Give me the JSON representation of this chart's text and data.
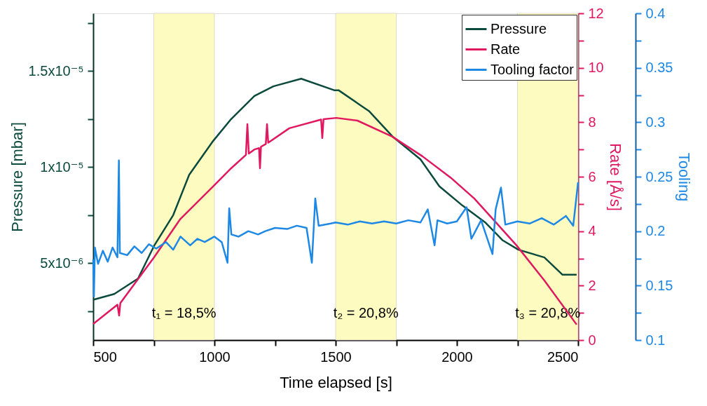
{
  "chart_data": {
    "type": "line",
    "xlabel": "Time elapsed [s]",
    "ylabel": "Pressure [mbar]",
    "y2label": "Rate [Å/s]",
    "y3label": "Tooling",
    "xlim": [
      500,
      2500
    ],
    "xticks": [
      500,
      {
        "value": 750,
        "label": null
      },
      1000,
      {
        "value": 1250,
        "label": null
      },
      1500,
      {
        "value": 1750,
        "label": null
      },
      2000,
      {
        "value": 2250,
        "label": null
      },
      2500
    ],
    "ylim": [
      1e-06,
      1.8e-05
    ],
    "yticks": [
      {
        "value": 2.5e-06,
        "label": null
      },
      {
        "value": 5e-06,
        "label": "5x10⁻⁶"
      },
      {
        "value": 7.5e-06,
        "label": null
      },
      {
        "value": 1e-05,
        "label": "1x10⁻⁵"
      },
      {
        "value": 1.25e-05,
        "label": null
      },
      {
        "value": 1.5e-05,
        "label": "1.5x10⁻⁵"
      },
      {
        "value": 1.75e-05,
        "label": null
      }
    ],
    "y2lim": [
      0,
      12
    ],
    "y2ticks": [
      0,
      {
        "value": 1,
        "label": null
      },
      2,
      {
        "value": 3,
        "label": null
      },
      4,
      {
        "value": 5,
        "label": null
      },
      6,
      {
        "value": 7,
        "label": null
      },
      8,
      {
        "value": 9,
        "label": null
      },
      10,
      {
        "value": 11,
        "label": null
      },
      12
    ],
    "y3lim": [
      0.1,
      0.4
    ],
    "y3ticks": [
      0.1,
      {
        "value": 0.125,
        "label": null
      },
      0.15,
      {
        "value": 0.175,
        "label": null
      },
      0.2,
      {
        "value": 0.225,
        "label": null
      },
      0.25,
      {
        "value": 0.275,
        "label": null
      },
      0.3,
      {
        "value": 0.325,
        "label": null
      },
      0.35,
      {
        "value": 0.375,
        "label": null
      },
      0.4
    ],
    "grid": false,
    "legend": "top right",
    "marker": "none",
    "line_style": "solid",
    "bands": [
      {
        "axis": "x",
        "from": 750,
        "to": 1000,
        "label": "t₁ = 18,5%",
        "color": "#fdfbbf"
      },
      {
        "axis": "x",
        "from": 1500,
        "to": 1750,
        "label": "t₂ = 20,8%",
        "color": "#fdfbbf"
      },
      {
        "axis": "x",
        "from": 2250,
        "to": 2500,
        "label": "t₃ = 20,8%",
        "color": "#fdfbbf"
      }
    ],
    "series": [
      {
        "name": "Pressure",
        "color": "#0b4a3c",
        "x": [
          500,
          587,
          685,
          751,
          830,
          896,
          991,
          1069,
          1165,
          1243,
          1358,
          1494,
          1512,
          1639,
          1734,
          1850,
          1928,
          2023,
          2119,
          2188,
          2254,
          2361,
          2436,
          2494
        ],
        "values": [
          3.1e-06,
          3.4e-06,
          4.2e-06,
          5.9e-06,
          7.5e-06,
          9.6e-06,
          1.13e-05,
          1.25e-05,
          1.37e-05,
          1.42e-05,
          1.46e-05,
          1.4e-05,
          1.4e-05,
          1.29e-05,
          1.16e-05,
          1.04e-05,
          9e-06,
          8e-06,
          7.1e-06,
          6.2e-06,
          5.7e-06,
          5.3e-06,
          4.4e-06,
          4.4e-06
        ]
      },
      {
        "name": "Rate",
        "color": "#e0185f",
        "axis": "y2",
        "x": [
          500,
          600,
          607,
          612,
          751,
          858,
          991,
          1069,
          1130,
          1136,
          1142,
          1165,
          1184,
          1188,
          1192,
          1212,
          1217,
          1222,
          1309,
          1440,
          1445,
          1450,
          1503,
          1590,
          1734,
          1858,
          1974,
          2072,
          2168,
          2246,
          2361,
          2494
        ],
        "values": [
          0.59,
          1.3,
          0.9,
          1.36,
          3.04,
          4.43,
          5.61,
          6.31,
          6.8,
          7.93,
          6.85,
          7.0,
          7.05,
          6.31,
          7.1,
          7.2,
          7.93,
          7.25,
          7.78,
          8.1,
          7.42,
          8.11,
          8.16,
          8.06,
          7.47,
          6.75,
          5.97,
          5.2,
          4.25,
          3.48,
          2.19,
          0.57
        ]
      },
      {
        "name": "Tooling factor",
        "color": "#1e88e5",
        "axis": "y3",
        "x": [
          500,
          503,
          507,
          520,
          540,
          560,
          580,
          600,
          606,
          610,
          640,
          670,
          700,
          730,
          760,
          800,
          830,
          860,
          900,
          930,
          960,
          1000,
          1030,
          1054,
          1061,
          1070,
          1100,
          1140,
          1180,
          1210,
          1250,
          1300,
          1340,
          1380,
          1402,
          1416,
          1430,
          1480,
          1500,
          1550,
          1600,
          1650,
          1700,
          1750,
          1800,
          1850,
          1880,
          1908,
          1920,
          1960,
          2000,
          2040,
          2060,
          2100,
          2147,
          2160,
          2182,
          2200,
          2250,
          2300,
          2350,
          2400,
          2450,
          2480,
          2500
        ],
        "values": [
          0.174,
          0.14,
          0.185,
          0.17,
          0.182,
          0.172,
          0.185,
          0.176,
          0.265,
          0.18,
          0.178,
          0.186,
          0.18,
          0.188,
          0.184,
          0.19,
          0.183,
          0.195,
          0.187,
          0.193,
          0.19,
          0.195,
          0.19,
          0.171,
          0.221,
          0.197,
          0.195,
          0.2,
          0.197,
          0.2,
          0.203,
          0.202,
          0.205,
          0.203,
          0.171,
          0.23,
          0.205,
          0.207,
          0.208,
          0.206,
          0.209,
          0.207,
          0.209,
          0.207,
          0.21,
          0.208,
          0.22,
          0.187,
          0.21,
          0.207,
          0.209,
          0.222,
          0.193,
          0.21,
          0.179,
          0.22,
          0.24,
          0.206,
          0.209,
          0.207,
          0.212,
          0.206,
          0.214,
          0.205,
          0.245
        ]
      }
    ]
  }
}
